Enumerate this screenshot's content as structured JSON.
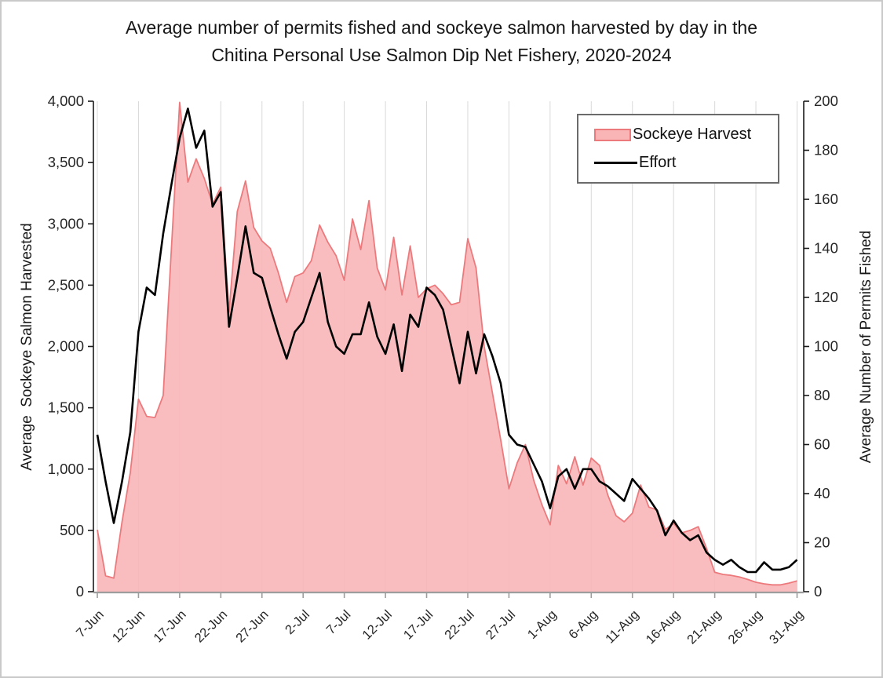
{
  "title": {
    "line1": "Average number of permits fished and sockeye salmon harvested by day in the",
    "line2": "Chitina Personal Use Salmon Dip Net Fishery, 2020-2024"
  },
  "legend": {
    "harvest_label": "Sockeye Harvest",
    "effort_label": "Effort"
  },
  "colors": {
    "area_fill": "#f9b4b6",
    "area_edge": "#ec7a7d",
    "effort_line": "#000000",
    "gridline": "#d9d9d9",
    "dark_axis": "#1a1a1a",
    "bottom_axis": "#9d9d9d"
  },
  "chart_data": {
    "type": "area+line combo, daily time series",
    "title": "Average number of permits fished and sockeye salmon harvested by day in the Chitina Personal Use Salmon Dip Net Fishery, 2020-2024",
    "x_start_date": "7-Jun",
    "x_end_date": "31-Aug",
    "x_tick_interval_days": 5,
    "x_tick_labels": [
      "7-Jun",
      "12-Jun",
      "17-Jun",
      "22-Jun",
      "27-Jun",
      "2-Jul",
      "7-Jul",
      "12-Jul",
      "17-Jul",
      "22-Jul",
      "27-Jul",
      "1-Aug",
      "6-Aug",
      "11-Aug",
      "16-Aug",
      "21-Aug",
      "26-Aug",
      "31-Aug"
    ],
    "left_axis": {
      "label": "Average  Sockeye Salmon Harvested",
      "min": 0,
      "max": 4000,
      "step": 500,
      "comma_format": true
    },
    "right_axis": {
      "label": "Average Number of Permits Fished",
      "min": 0,
      "max": 200,
      "step": 20,
      "comma_format": false
    },
    "grid": "vertical-only",
    "legend_position": "top-right-inside",
    "series": [
      {
        "name": "Sockeye Harvest",
        "type": "area",
        "axis": "left",
        "values": [
          505,
          130,
          110,
          570,
          970,
          1570,
          1430,
          1420,
          1600,
          2800,
          3990,
          3340,
          3530,
          3370,
          3160,
          3300,
          2280,
          3100,
          3350,
          2970,
          2860,
          2800,
          2600,
          2360,
          2570,
          2600,
          2700,
          2990,
          2850,
          2740,
          2540,
          3040,
          2790,
          3190,
          2640,
          2460,
          2890,
          2420,
          2820,
          2400,
          2470,
          2500,
          2430,
          2340,
          2360,
          2880,
          2640,
          2000,
          1620,
          1240,
          840,
          1050,
          1200,
          910,
          710,
          546,
          1030,
          880,
          1100,
          870,
          1090,
          1030,
          790,
          620,
          570,
          640,
          870,
          690,
          667,
          507,
          557,
          480,
          500,
          530,
          354,
          158,
          141,
          133,
          120,
          100,
          77,
          64,
          56,
          56,
          70,
          88
        ]
      },
      {
        "name": "Effort",
        "type": "line",
        "axis": "right",
        "values": [
          64,
          45,
          28,
          45,
          65,
          106,
          124,
          121,
          146,
          166,
          185,
          197,
          181,
          188,
          157,
          163,
          108,
          128,
          149,
          130,
          128,
          116,
          105,
          95,
          106,
          110,
          120,
          130,
          110,
          100,
          97,
          105,
          105,
          118,
          104,
          97,
          109,
          90,
          113,
          108,
          124,
          121,
          115,
          100,
          85,
          106,
          89,
          105,
          96,
          85,
          64,
          60,
          59,
          52,
          45,
          34,
          47,
          50,
          42,
          50,
          50,
          45,
          43,
          40,
          37,
          46,
          42,
          38,
          33,
          23,
          29,
          24,
          21,
          23,
          16,
          13,
          11,
          13,
          10,
          8,
          8,
          12,
          9,
          9,
          10,
          13
        ]
      }
    ]
  }
}
